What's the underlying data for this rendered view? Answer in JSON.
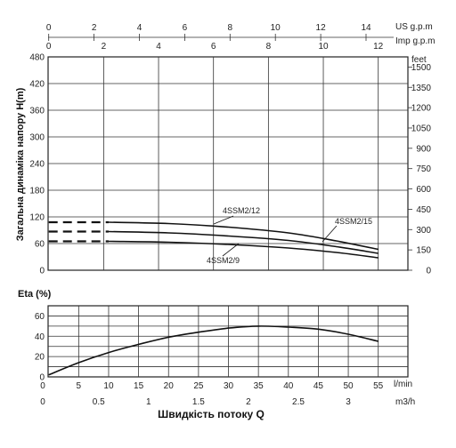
{
  "axes_text": {
    "us_gpm": "US g.p.m",
    "imp_gpm": "Imp g.p.m",
    "feet": "feet",
    "y_head_label": "Загальна динаміка напору H(m)",
    "eta_label": "Eta (%)",
    "lmin": "l/min",
    "m3h": "m3/h",
    "x_title": "Швидкість потоку Q"
  },
  "chart_data": [
    {
      "type": "line",
      "title": "",
      "ylabel": "Загальна динаміка напору H(m)",
      "ylabel_right": "feet",
      "ylim": [
        0,
        480
      ],
      "y_ticks": [
        0,
        60,
        120,
        180,
        240,
        300,
        360,
        420,
        480
      ],
      "feet_ticks": [
        0,
        150,
        300,
        450,
        600,
        750,
        900,
        1050,
        1200,
        1350,
        1500
      ],
      "x_units": "l/min",
      "xlim": [
        0,
        55
      ],
      "top_us_gpm_ticks": [
        0,
        2,
        4,
        6,
        8,
        10,
        12,
        14
      ],
      "top_imp_gpm_ticks": [
        0,
        2,
        4,
        6,
        8,
        10,
        12
      ],
      "series": [
        {
          "name": "4SSM2/15",
          "x": [
            0,
            10,
            20,
            30,
            40,
            48,
            55
          ],
          "y": [
            108,
            108,
            105,
            97,
            84,
            66,
            47
          ]
        },
        {
          "name": "4SSM2/12",
          "x": [
            0,
            10,
            20,
            30,
            40,
            48,
            55
          ],
          "y": [
            87,
            87,
            84,
            77,
            67,
            53,
            38
          ]
        },
        {
          "name": "4SSM2/9",
          "x": [
            0,
            10,
            20,
            30,
            40,
            48,
            55
          ],
          "y": [
            65,
            65,
            63,
            58,
            50,
            40,
            28
          ]
        }
      ]
    },
    {
      "type": "line",
      "title": "",
      "ylabel": "Eta (%)",
      "ylim": [
        0,
        70
      ],
      "y_ticks": [
        0,
        20,
        40,
        60
      ],
      "x_ticks_lmin": [
        0,
        5,
        10,
        15,
        20,
        25,
        30,
        35,
        40,
        45,
        50,
        55
      ],
      "x_ticks_m3h": [
        0,
        0.5,
        1,
        1.5,
        2,
        2.5,
        3
      ],
      "xlabel": "Швидкість потоку Q",
      "series": [
        {
          "x": [
            0,
            5,
            10,
            15,
            20,
            25,
            30,
            35,
            40,
            45,
            50,
            55
          ],
          "y": [
            2,
            14,
            24,
            32,
            39,
            44,
            48,
            50,
            49,
            47,
            42,
            35
          ]
        }
      ]
    }
  ]
}
